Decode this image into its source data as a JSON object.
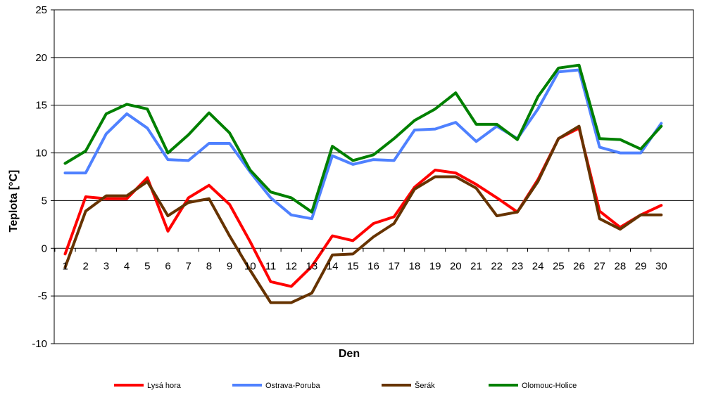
{
  "chart_data": {
    "type": "line",
    "xlabel": "Den",
    "ylabel": "Teplota [°C]",
    "ylim": [
      -10,
      25
    ],
    "yticks": [
      -10,
      -5,
      0,
      5,
      10,
      15,
      20,
      25
    ],
    "grid": "horizontal",
    "legend_position": "bottom",
    "x": [
      1,
      2,
      3,
      4,
      5,
      6,
      7,
      8,
      9,
      10,
      11,
      12,
      13,
      14,
      15,
      16,
      17,
      18,
      19,
      20,
      21,
      22,
      23,
      24,
      25,
      26,
      27,
      28,
      29,
      30
    ],
    "series": [
      {
        "name": "Lysá hora",
        "color": "#ff0000",
        "values": [
          -0.6,
          5.4,
          5.2,
          5.2,
          7.4,
          1.8,
          5.3,
          6.6,
          4.6,
          0.7,
          -3.5,
          -4.0,
          -1.9,
          1.3,
          0.8,
          2.6,
          3.3,
          6.4,
          8.2,
          7.9,
          6.7,
          5.3,
          3.8,
          7.2,
          11.5,
          12.6,
          3.9,
          2.2,
          3.5,
          4.5
        ]
      },
      {
        "name": "Ostrava-Poruba",
        "color": "#4f81ff",
        "values": [
          7.9,
          7.9,
          12.0,
          14.1,
          12.6,
          9.3,
          9.2,
          11.0,
          11.0,
          8.0,
          5.3,
          3.5,
          3.1,
          9.7,
          8.8,
          9.3,
          9.2,
          12.4,
          12.5,
          13.2,
          11.2,
          12.8,
          11.5,
          14.6,
          18.5,
          18.7,
          10.6,
          10.0,
          10.0,
          13.1
        ]
      },
      {
        "name": "Šerák",
        "color": "#663300",
        "values": [
          -2.0,
          3.9,
          5.5,
          5.5,
          7.0,
          3.4,
          4.8,
          5.2,
          1.3,
          -2.3,
          -5.7,
          -5.7,
          -4.7,
          -0.7,
          -0.6,
          1.2,
          2.6,
          6.2,
          7.5,
          7.5,
          6.3,
          3.4,
          3.8,
          7.0,
          11.5,
          12.8,
          3.1,
          2.0,
          3.5,
          3.5
        ]
      },
      {
        "name": "Olomouc-Holice",
        "color": "#008000",
        "values": [
          8.9,
          10.2,
          14.1,
          15.1,
          14.6,
          10.0,
          11.9,
          14.2,
          12.1,
          8.2,
          5.9,
          5.3,
          3.8,
          10.7,
          9.2,
          9.8,
          11.5,
          13.4,
          14.6,
          16.3,
          13.0,
          13.0,
          11.4,
          15.9,
          18.9,
          19.2,
          11.5,
          11.4,
          10.4,
          12.8
        ]
      }
    ]
  }
}
